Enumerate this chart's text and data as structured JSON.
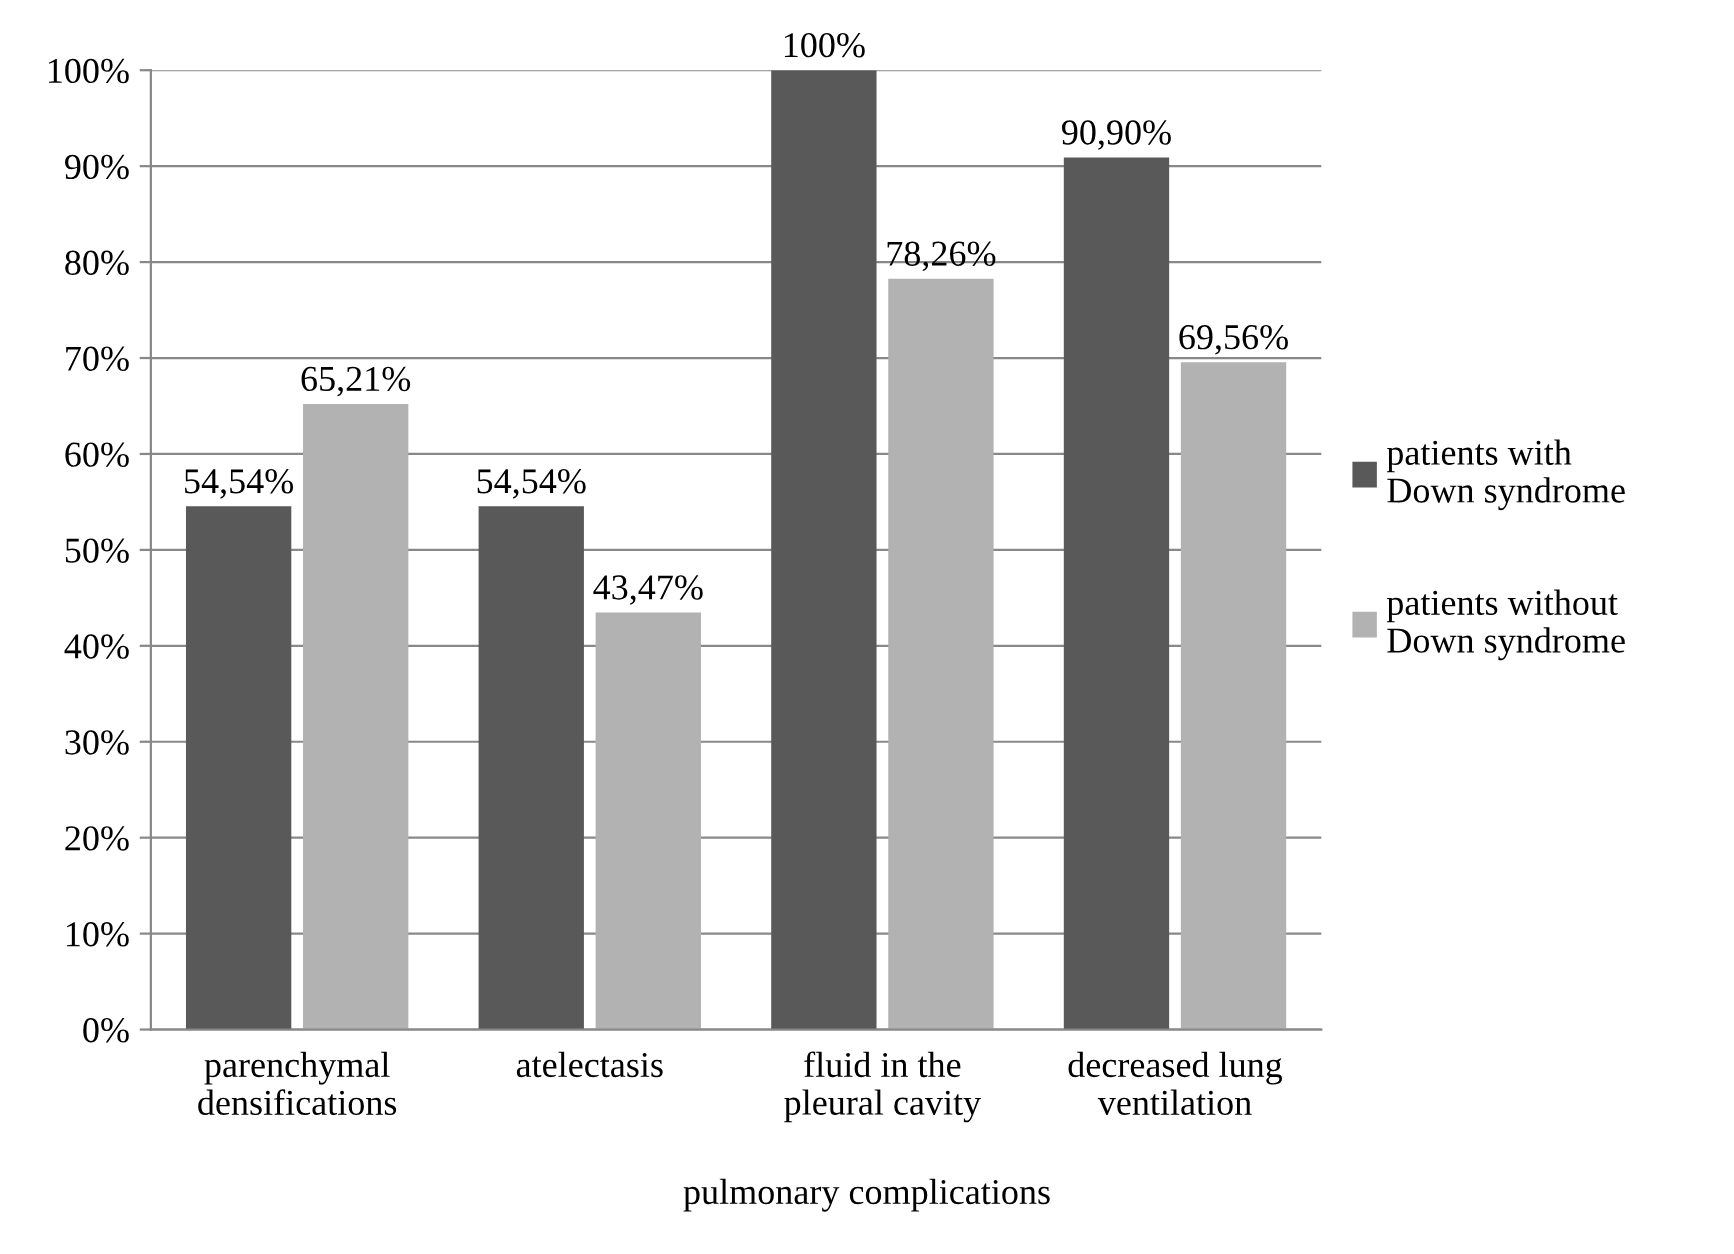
{
  "chart_data": {
    "type": "bar",
    "xlabel": "pulmonary complications",
    "categories": [
      "parenchymal densifications",
      "atelectasis",
      "fluid in the pleural cavity",
      "decreased lung ventilation"
    ],
    "series": [
      {
        "name": "patients with Down syndrome",
        "color": "#595959",
        "values": [
          54.54,
          54.54,
          100,
          90.9
        ],
        "value_labels": [
          "54,54%",
          "54,54%",
          "100%",
          "90,90%"
        ]
      },
      {
        "name": "patients without Down syndrome",
        "color": "#b2b2b2",
        "values": [
          65.21,
          43.47,
          78.26,
          69.56
        ],
        "value_labels": [
          "65,21%",
          "43,47%",
          "78,26%",
          "69,56%"
        ]
      }
    ],
    "ylim": [
      0,
      100
    ],
    "yticks": [
      {
        "value": 0,
        "label": "0%"
      },
      {
        "value": 10,
        "label": "10%"
      },
      {
        "value": 20,
        "label": "20%"
      },
      {
        "value": 30,
        "label": "30%"
      },
      {
        "value": 40,
        "label": "40%"
      },
      {
        "value": 50,
        "label": "50%"
      },
      {
        "value": 60,
        "label": "60%"
      },
      {
        "value": 70,
        "label": "70%"
      },
      {
        "value": 80,
        "label": "80%"
      },
      {
        "value": 90,
        "label": "90%"
      },
      {
        "value": 100,
        "label": "100%"
      }
    ],
    "grid": "y",
    "legend": "right"
  }
}
